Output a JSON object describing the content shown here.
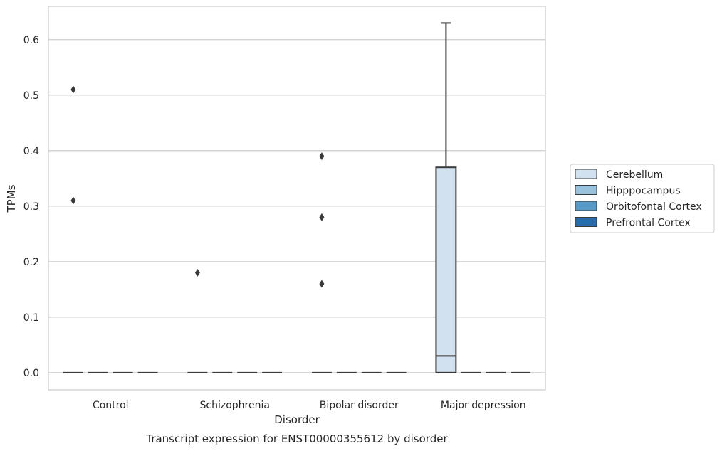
{
  "caption": "Transcript expression for ENST00000355612 by disorder",
  "chart_data": {
    "type": "box",
    "title": "",
    "xlabel": "Disorder",
    "ylabel": "TPMs",
    "ylim": [
      -0.031,
      0.66
    ],
    "yticks": [
      0.0,
      0.1,
      0.2,
      0.3,
      0.4,
      0.5,
      0.6
    ],
    "ytick_labels": [
      "0.0",
      "0.1",
      "0.2",
      "0.3",
      "0.4",
      "0.5",
      "0.6"
    ],
    "grid": "horizontal",
    "legend_position": "right",
    "categories": [
      "Control",
      "Schizophrenia",
      "Bipolar disorder",
      "Major depression"
    ],
    "series": [
      {
        "name": "Cerebellum",
        "color": "#d2e1f0",
        "boxes": [
          {
            "category": "Control",
            "q1": 0.0,
            "median": 0.0,
            "q3": 0.0,
            "whisker_low": 0.0,
            "whisker_high": 0.0,
            "outliers": [
              0.31,
              0.51
            ]
          },
          {
            "category": "Schizophrenia",
            "q1": 0.0,
            "median": 0.0,
            "q3": 0.0,
            "whisker_low": 0.0,
            "whisker_high": 0.0,
            "outliers": [
              0.18
            ]
          },
          {
            "category": "Bipolar disorder",
            "q1": 0.0,
            "median": 0.0,
            "q3": 0.0,
            "whisker_low": 0.0,
            "whisker_high": 0.0,
            "outliers": [
              0.16,
              0.28,
              0.39
            ]
          },
          {
            "category": "Major depression",
            "q1": 0.0,
            "median": 0.03,
            "q3": 0.37,
            "whisker_low": 0.0,
            "whisker_high": 0.63,
            "outliers": []
          }
        ]
      },
      {
        "name": "Hipppocampus",
        "color": "#9ac2dd",
        "boxes": [
          {
            "category": "Control",
            "q1": 0.0,
            "median": 0.0,
            "q3": 0.0,
            "whisker_low": 0.0,
            "whisker_high": 0.0,
            "outliers": []
          },
          {
            "category": "Schizophrenia",
            "q1": 0.0,
            "median": 0.0,
            "q3": 0.0,
            "whisker_low": 0.0,
            "whisker_high": 0.0,
            "outliers": []
          },
          {
            "category": "Bipolar disorder",
            "q1": 0.0,
            "median": 0.0,
            "q3": 0.0,
            "whisker_low": 0.0,
            "whisker_high": 0.0,
            "outliers": []
          },
          {
            "category": "Major depression",
            "q1": 0.0,
            "median": 0.0,
            "q3": 0.0,
            "whisker_low": 0.0,
            "whisker_high": 0.0,
            "outliers": []
          }
        ]
      },
      {
        "name": "Orbitofontal Cortex",
        "color": "#5799c7",
        "boxes": [
          {
            "category": "Control",
            "q1": 0.0,
            "median": 0.0,
            "q3": 0.0,
            "whisker_low": 0.0,
            "whisker_high": 0.0,
            "outliers": []
          },
          {
            "category": "Schizophrenia",
            "q1": 0.0,
            "median": 0.0,
            "q3": 0.0,
            "whisker_low": 0.0,
            "whisker_high": 0.0,
            "outliers": []
          },
          {
            "category": "Bipolar disorder",
            "q1": 0.0,
            "median": 0.0,
            "q3": 0.0,
            "whisker_low": 0.0,
            "whisker_high": 0.0,
            "outliers": []
          },
          {
            "category": "Major depression",
            "q1": 0.0,
            "median": 0.0,
            "q3": 0.0,
            "whisker_low": 0.0,
            "whisker_high": 0.0,
            "outliers": []
          }
        ]
      },
      {
        "name": "Prefrontal Cortex",
        "color": "#2a6aab",
        "boxes": [
          {
            "category": "Control",
            "q1": 0.0,
            "median": 0.0,
            "q3": 0.0,
            "whisker_low": 0.0,
            "whisker_high": 0.0,
            "outliers": []
          },
          {
            "category": "Schizophrenia",
            "q1": 0.0,
            "median": 0.0,
            "q3": 0.0,
            "whisker_low": 0.0,
            "whisker_high": 0.0,
            "outliers": []
          },
          {
            "category": "Bipolar disorder",
            "q1": 0.0,
            "median": 0.0,
            "q3": 0.0,
            "whisker_low": 0.0,
            "whisker_high": 0.0,
            "outliers": []
          },
          {
            "category": "Major depression",
            "q1": 0.0,
            "median": 0.0,
            "q3": 0.0,
            "whisker_low": 0.0,
            "whisker_high": 0.0,
            "outliers": []
          }
        ]
      }
    ],
    "colors": {
      "line": "#3a3a3a",
      "grid": "#cccccc",
      "frame": "#cccccc",
      "legend_border": "#cccccc",
      "text": "#262626"
    }
  }
}
